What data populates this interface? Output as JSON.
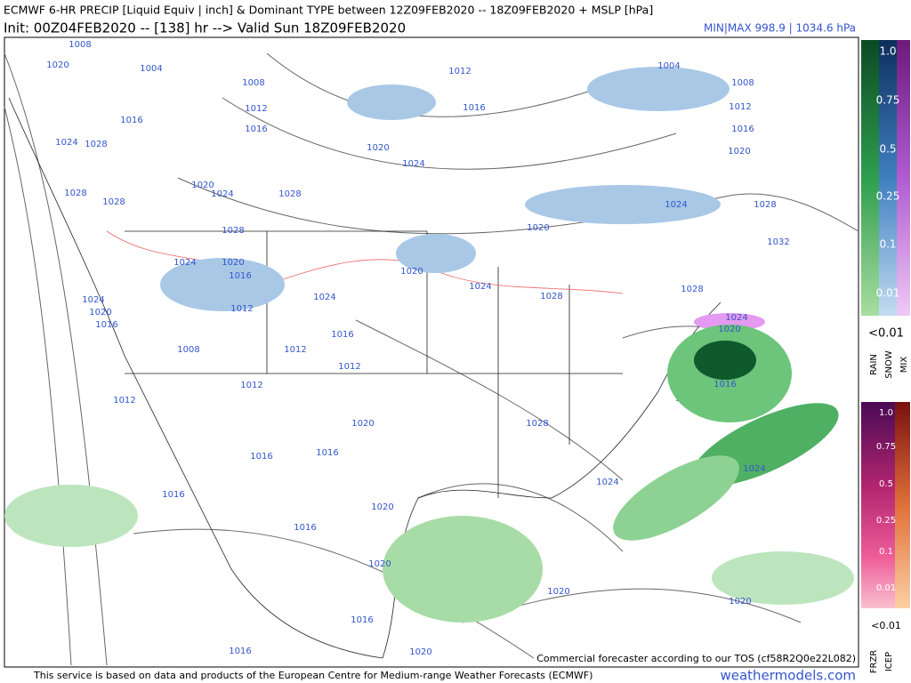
{
  "header": {
    "title": "ECMWF 6-HR PRECIP [Liquid Equiv | inch] & Dominant TYPE between 12Z09FEB2020 -- 18Z09FEB2020 + MSLP [hPa]",
    "subtitle": "Init: 00Z04FEB2020 -- [138] hr --> Valid Sun 18Z09FEB2020",
    "minmax": "MIN|MAX 998.9 | 1034.6 hPa"
  },
  "map": {
    "isobar_labels": [
      1008,
      1020,
      1004,
      1012,
      1004,
      1008,
      1016,
      1008,
      1012,
      1012,
      1016,
      1016,
      1016,
      1024,
      1028,
      1020,
      1024,
      1020,
      1020,
      1024,
      1028,
      1028,
      1028,
      1024,
      1028,
      1028,
      1020,
      1032,
      1024,
      1020,
      1016,
      1020,
      1024,
      1028,
      1024,
      1020,
      1016,
      1012,
      1024,
      1028,
      1024,
      1020,
      1016,
      1008,
      1012,
      1012,
      1012,
      1016,
      1012,
      1020,
      1028,
      1016,
      1016,
      1024,
      1024,
      1016,
      1020,
      1016,
      1020,
      1020,
      1016,
      1020,
      1016,
      1020
    ],
    "tos": "Commercial forecaster according to our TOS (cf58R2Q0e22L082)"
  },
  "legend": {
    "rain_snow": {
      "levels": [
        "1.0",
        "0.75",
        "0.5",
        "0.25",
        "0.1",
        "0.01"
      ],
      "below": "<0.01",
      "types": [
        "RAIN",
        "SNOW",
        "MIX"
      ]
    },
    "frzr_icep": {
      "levels": [
        "1.0",
        "0.75",
        "0.5",
        "0.25",
        "0.1",
        "0.01"
      ],
      "below": "<0.01",
      "types": [
        "FRZR",
        "ICEP"
      ]
    }
  },
  "footer": {
    "credit": "This service is based on data and products of the European Centre for Medium-range Weather Forecasts (ECMWF)",
    "site": "weathermodels.com"
  }
}
